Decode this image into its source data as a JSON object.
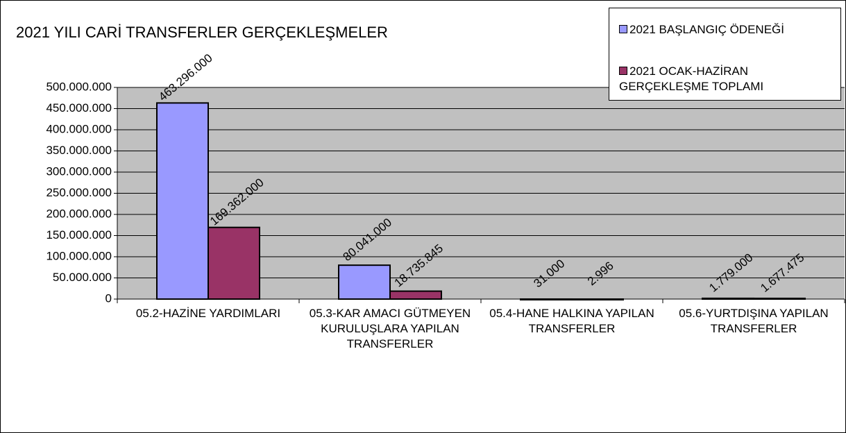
{
  "chart_data": {
    "type": "bar",
    "title": "2021 YILI CARİ TRANSFERLER  GERÇEKLEŞMELER",
    "categories": [
      "05.2-HAZİNE YARDIMLARI",
      "05.3-KAR AMACI GÜTMEYEN KURULUŞLARA YAPILAN TRANSFERLER",
      "05.4-HANE HALKINA YAPILAN TRANSFERLER",
      "05.6-YURTDIŞINA YAPILAN TRANSFERLER"
    ],
    "series": [
      {
        "name": "2021 BAŞLANGIÇ ÖDENEĞİ",
        "color": "#9999ff",
        "values": [
          463296000,
          80041000,
          31000,
          1779000
        ],
        "value_labels": [
          "463.296.000",
          "80.041.000",
          "31.000",
          "1.779.000"
        ]
      },
      {
        "name": "2021 OCAK-HAZİRAN GERÇEKLEŞME TOPLAMI",
        "color": "#993366",
        "values": [
          169362000,
          18735845,
          2996,
          1677475
        ],
        "value_labels": [
          "169.362.000",
          "18.735.845",
          "2.996",
          "1.677.475"
        ]
      }
    ],
    "ylim": [
      0,
      500000000
    ],
    "yticks": [
      0,
      {
        "value": 50000000,
        "label": "50.000.000"
      },
      {
        "value": 100000000,
        "label": "100.000.000"
      },
      {
        "value": 150000000,
        "label": "150.000.000"
      },
      {
        "value": 200000000,
        "label": "200.000.000"
      },
      {
        "value": 250000000,
        "label": "250.000.000"
      },
      {
        "value": 300000000,
        "label": "300.000.000"
      },
      {
        "value": 350000000,
        "label": "350.000.000"
      },
      {
        "value": 400000000,
        "label": "400.000.000"
      },
      {
        "value": 450000000,
        "label": "450.000.000"
      },
      {
        "value": 500000000,
        "label": "500.000.000"
      }
    ],
    "grid": true,
    "legend": "top-right"
  }
}
